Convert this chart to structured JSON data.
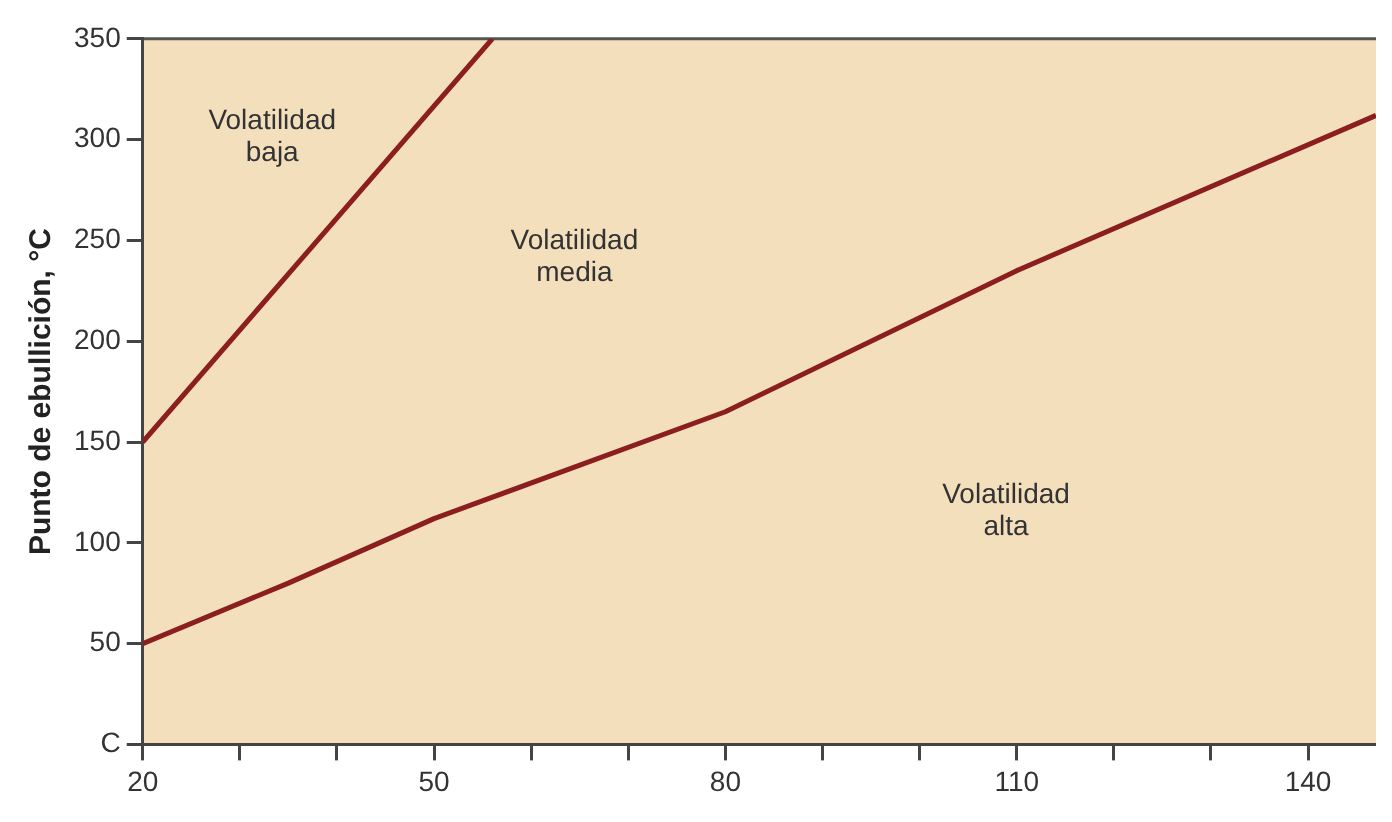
{
  "chart_data": {
    "type": "line",
    "ylabel": "Punto de ebullición, °C",
    "series": [
      {
        "color": "#8b1e1e",
        "x": [
          20,
          56
        ],
        "values": [
          150,
          350
        ]
      },
      {
        "color": "#8b1e1e",
        "x": [
          20,
          35,
          50,
          80,
          110,
          147
        ],
        "values": [
          50,
          80,
          112,
          165,
          235,
          312
        ]
      }
    ],
    "xlim": [
      20,
      147
    ],
    "xticks": [
      20,
      {
        "value": 30,
        "label": null
      },
      {
        "value": 40,
        "label": null
      },
      50,
      {
        "value": 60,
        "label": null
      },
      {
        "value": 70,
        "label": null
      },
      80,
      {
        "value": 90,
        "label": null
      },
      {
        "value": 100,
        "label": null
      },
      110,
      {
        "value": 120,
        "label": null
      },
      {
        "value": 130,
        "label": null
      },
      140
    ],
    "ylim": [
      0,
      350
    ],
    "yticks": [
      {
        "value": 0,
        "label": "C"
      },
      50,
      100,
      150,
      200,
      250,
      300,
      350
    ],
    "annotations": [
      "Volatilidad baja",
      "Volatilidad media",
      "Volatilidad alta"
    ],
    "grid": false,
    "legend": false,
    "marker": "none",
    "line_style": "solid"
  }
}
